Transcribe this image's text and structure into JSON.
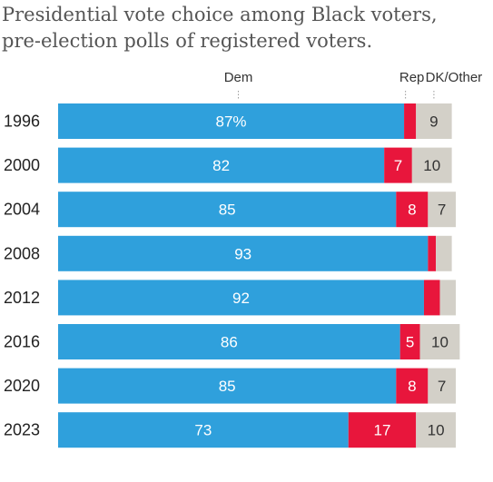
{
  "chart_data": {
    "type": "bar",
    "orientation": "horizontal",
    "stacked": true,
    "title": "Presidential vote choice among Black voters,",
    "subtitle": "pre-election polls of registered voters.",
    "categories": [
      "1996",
      "2000",
      "2004",
      "2008",
      "2012",
      "2016",
      "2020",
      "2023"
    ],
    "series": [
      {
        "name": "Dem",
        "color": "#2fa0dc",
        "values": [
          87,
          82,
          85,
          93,
          92,
          86,
          85,
          73
        ],
        "labels": [
          "87%",
          "82",
          "85",
          "93",
          "92",
          "86",
          "85",
          "73"
        ]
      },
      {
        "name": "Rep",
        "color": "#e8163c",
        "values": [
          3,
          7,
          8,
          2,
          4,
          5,
          8,
          17
        ],
        "labels": [
          "",
          "7",
          "8",
          "",
          "",
          "5",
          "8",
          "17"
        ]
      },
      {
        "name": "DK/Other",
        "color": "#d3d0c8",
        "values": [
          9,
          10,
          7,
          4,
          4,
          10,
          7,
          10
        ],
        "labels": [
          "9",
          "10",
          "7",
          "",
          "",
          "10",
          "7",
          "10"
        ]
      }
    ],
    "xlim": [
      0,
      100
    ],
    "legend": "top",
    "grid": false
  }
}
